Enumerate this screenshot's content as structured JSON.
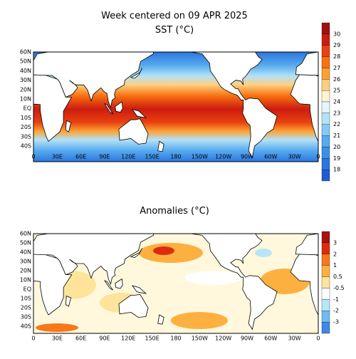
{
  "title": "Week centered on 09 APR 2025",
  "panels": [
    {
      "title": "SST (°C)",
      "lat_labels": [
        "60N",
        "50N",
        "40N",
        "30N",
        "20N",
        "10N",
        "EQ",
        "10S",
        "20S",
        "30S",
        "40S"
      ],
      "lon_labels": [
        "0",
        "30E",
        "60E",
        "90E",
        "120E",
        "150E",
        "180",
        "150W",
        "120W",
        "90W",
        "60W",
        "30W",
        "0"
      ],
      "colorbar": {
        "labels": [
          "30",
          "29",
          "28",
          "27",
          "26",
          "25",
          "24",
          "23",
          "22",
          "21",
          "20",
          "19",
          "18"
        ],
        "colors": [
          "#a01010",
          "#cc1c10",
          "#e84010",
          "#f87010",
          "#fca030",
          "#fdd080",
          "#fff4d0",
          "#e4f6ff",
          "#b4e2f8",
          "#84caf4",
          "#56aaee",
          "#3c90e8",
          "#2c76de",
          "#1e5cd0"
        ]
      }
    },
    {
      "title": "Anomalies (°C)",
      "lat_labels": [
        "60N",
        "50N",
        "40N",
        "30N",
        "20N",
        "10N",
        "EQ",
        "10S",
        "20S",
        "30S",
        "40S"
      ],
      "lon_labels": [
        "0",
        "30E",
        "60E",
        "90E",
        "120E",
        "150E",
        "180",
        "150W",
        "120W",
        "90W",
        "60W",
        "30W",
        "0"
      ],
      "colorbar": {
        "labels": [
          "3",
          "2",
          "1",
          "0.5",
          "-0.5",
          "-1",
          "-2",
          "-3"
        ],
        "colors": [
          "#a81010",
          "#e02a10",
          "#f87818",
          "#fcb040",
          "#fde49a",
          "#ffffff",
          "#b8e6f8",
          "#70bcf0",
          "#3c8ae4"
        ]
      }
    }
  ]
}
